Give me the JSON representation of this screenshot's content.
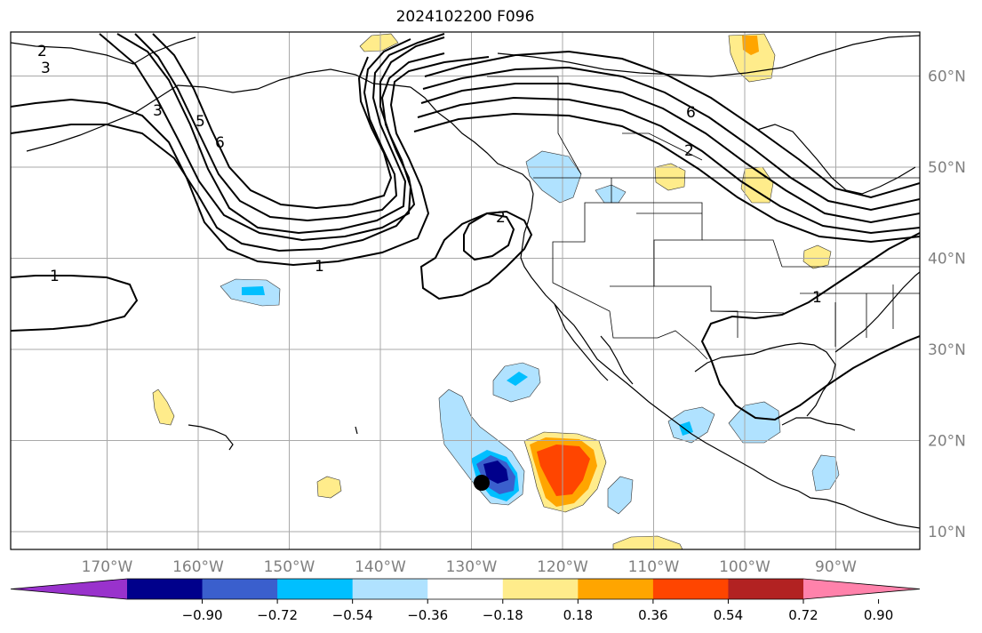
{
  "title": "2024102200 F096",
  "map": {
    "lon_ticks": [
      {
        "lon": -170,
        "label": "170°W"
      },
      {
        "lon": -160,
        "label": "160°W"
      },
      {
        "lon": -150,
        "label": "150°W"
      },
      {
        "lon": -140,
        "label": "140°W"
      },
      {
        "lon": -130,
        "label": "130°W"
      },
      {
        "lon": -120,
        "label": "120°W"
      },
      {
        "lon": -110,
        "label": "110°W"
      },
      {
        "lon": -100,
        "label": "100°W"
      },
      {
        "lon": -90,
        "label": "90°W"
      }
    ],
    "lat_ticks": [
      {
        "lat": 10,
        "label": "10°N"
      },
      {
        "lat": 20,
        "label": "20°N"
      },
      {
        "lat": 30,
        "label": "30°N"
      },
      {
        "lat": 40,
        "label": "40°N"
      },
      {
        "lat": 50,
        "label": "50°N"
      },
      {
        "lat": 60,
        "label": "60°N"
      }
    ],
    "grid": true,
    "contour_labels": [
      "1",
      "2",
      "3",
      "5",
      "6"
    ]
  },
  "colorbar": {
    "colors": [
      "#9932cc",
      "#00008b",
      "#3a5fcd",
      "#00bfff",
      "#b0e2ff",
      "#ffffff",
      "#ffec8b",
      "#ffa500",
      "#ff4500",
      "#b22222",
      "#ff82ab"
    ],
    "tick_labels": [
      "−0.90",
      "−0.72",
      "−0.54",
      "−0.36",
      "−0.18",
      "0.18",
      "0.36",
      "0.54",
      "0.72",
      "0.90"
    ]
  }
}
